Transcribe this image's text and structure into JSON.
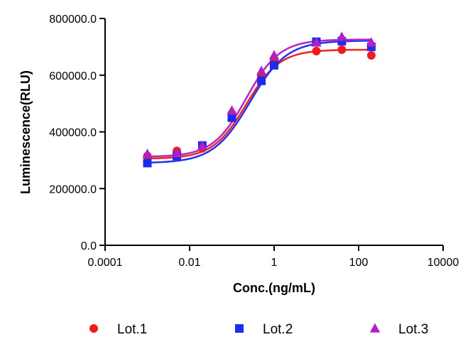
{
  "chart_data": {
    "type": "scatter",
    "x_scale": "log",
    "xlabel": "Conc.(ng/mL)",
    "ylabel": "Luminescence(RLU)",
    "xlim": [
      0.0001,
      10000
    ],
    "ylim": [
      0,
      800000
    ],
    "x_ticks": [
      0.0001,
      0.01,
      1,
      100,
      10000
    ],
    "x_tick_labels": [
      "0.0001",
      "0.01",
      "1",
      "100",
      "10000"
    ],
    "y_ticks": [
      0,
      200000,
      400000,
      600000,
      800000
    ],
    "y_tick_labels": [
      "0.0",
      "200000.0",
      "400000.0",
      "600000.0",
      "800000.0"
    ],
    "legend_position": "bottom",
    "fit": "four-parameter logistic curve per series",
    "x": [
      0.001,
      0.005,
      0.02,
      0.1,
      0.5,
      1,
      10,
      40,
      200
    ],
    "series": [
      {
        "name": "Lot.1",
        "color": "#ee1c1c",
        "marker": "circle",
        "values": [
          315000,
          333000,
          342000,
          465000,
          600000,
          655000,
          685000,
          690000,
          670000
        ],
        "fit_params": {
          "bottom": 305000,
          "top": 690000,
          "ec50": 0.22,
          "hill": 1.1
        }
      },
      {
        "name": "Lot.2",
        "color": "#1c2cee",
        "marker": "square",
        "values": [
          290000,
          315000,
          352000,
          450000,
          580000,
          635000,
          718000,
          720000,
          700000
        ],
        "fit_params": {
          "bottom": 290000,
          "top": 722000,
          "ec50": 0.27,
          "hill": 1.0
        }
      },
      {
        "name": "Lot.3",
        "color": "#b320c0",
        "marker": "triangle",
        "values": [
          322000,
          325000,
          350000,
          475000,
          615000,
          670000,
          715000,
          735000,
          715000
        ],
        "fit_params": {
          "bottom": 312000,
          "top": 726000,
          "ec50": 0.22,
          "hill": 1.1
        }
      }
    ]
  }
}
